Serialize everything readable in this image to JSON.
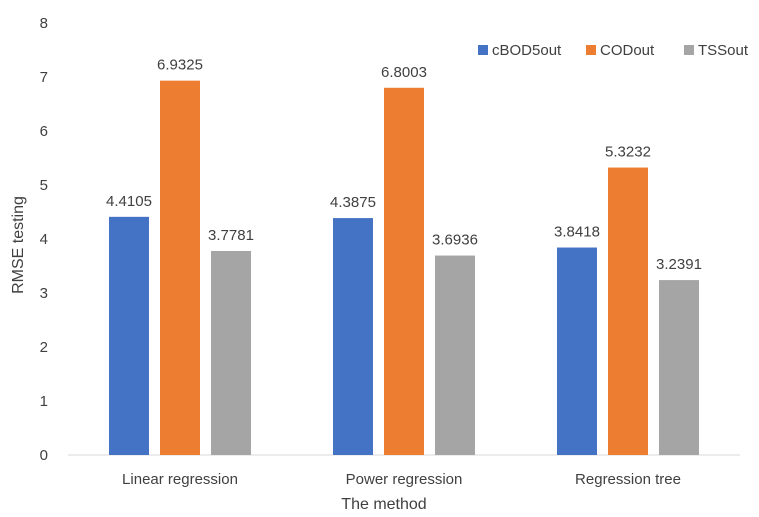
{
  "chart_data": {
    "type": "bar",
    "categories": [
      "Linear regression",
      "Power regression",
      "Regression tree"
    ],
    "series": [
      {
        "name": "cBOD5out",
        "color": "#4472C4",
        "values": [
          4.4105,
          4.3875,
          3.8418
        ],
        "labels": [
          "4.4105",
          "4.3875",
          "3.8418"
        ]
      },
      {
        "name": "CODout",
        "color": "#ED7D31",
        "values": [
          6.9325,
          6.8003,
          5.3232
        ],
        "labels": [
          "6.9325",
          "6.8003",
          "5.3232"
        ]
      },
      {
        "name": "TSSout",
        "color": "#A5A5A5",
        "values": [
          3.7781,
          3.6936,
          3.2391
        ],
        "labels": [
          "3.7781",
          "3.6936",
          "3.2391"
        ]
      }
    ],
    "xlabel": "The method",
    "ylabel": "RMSE testing",
    "ylim": [
      0,
      8
    ],
    "yticks": [
      "0",
      "1",
      "2",
      "3",
      "4",
      "5",
      "6",
      "7",
      "8"
    ],
    "legend_position": "top-right",
    "grid": false
  }
}
